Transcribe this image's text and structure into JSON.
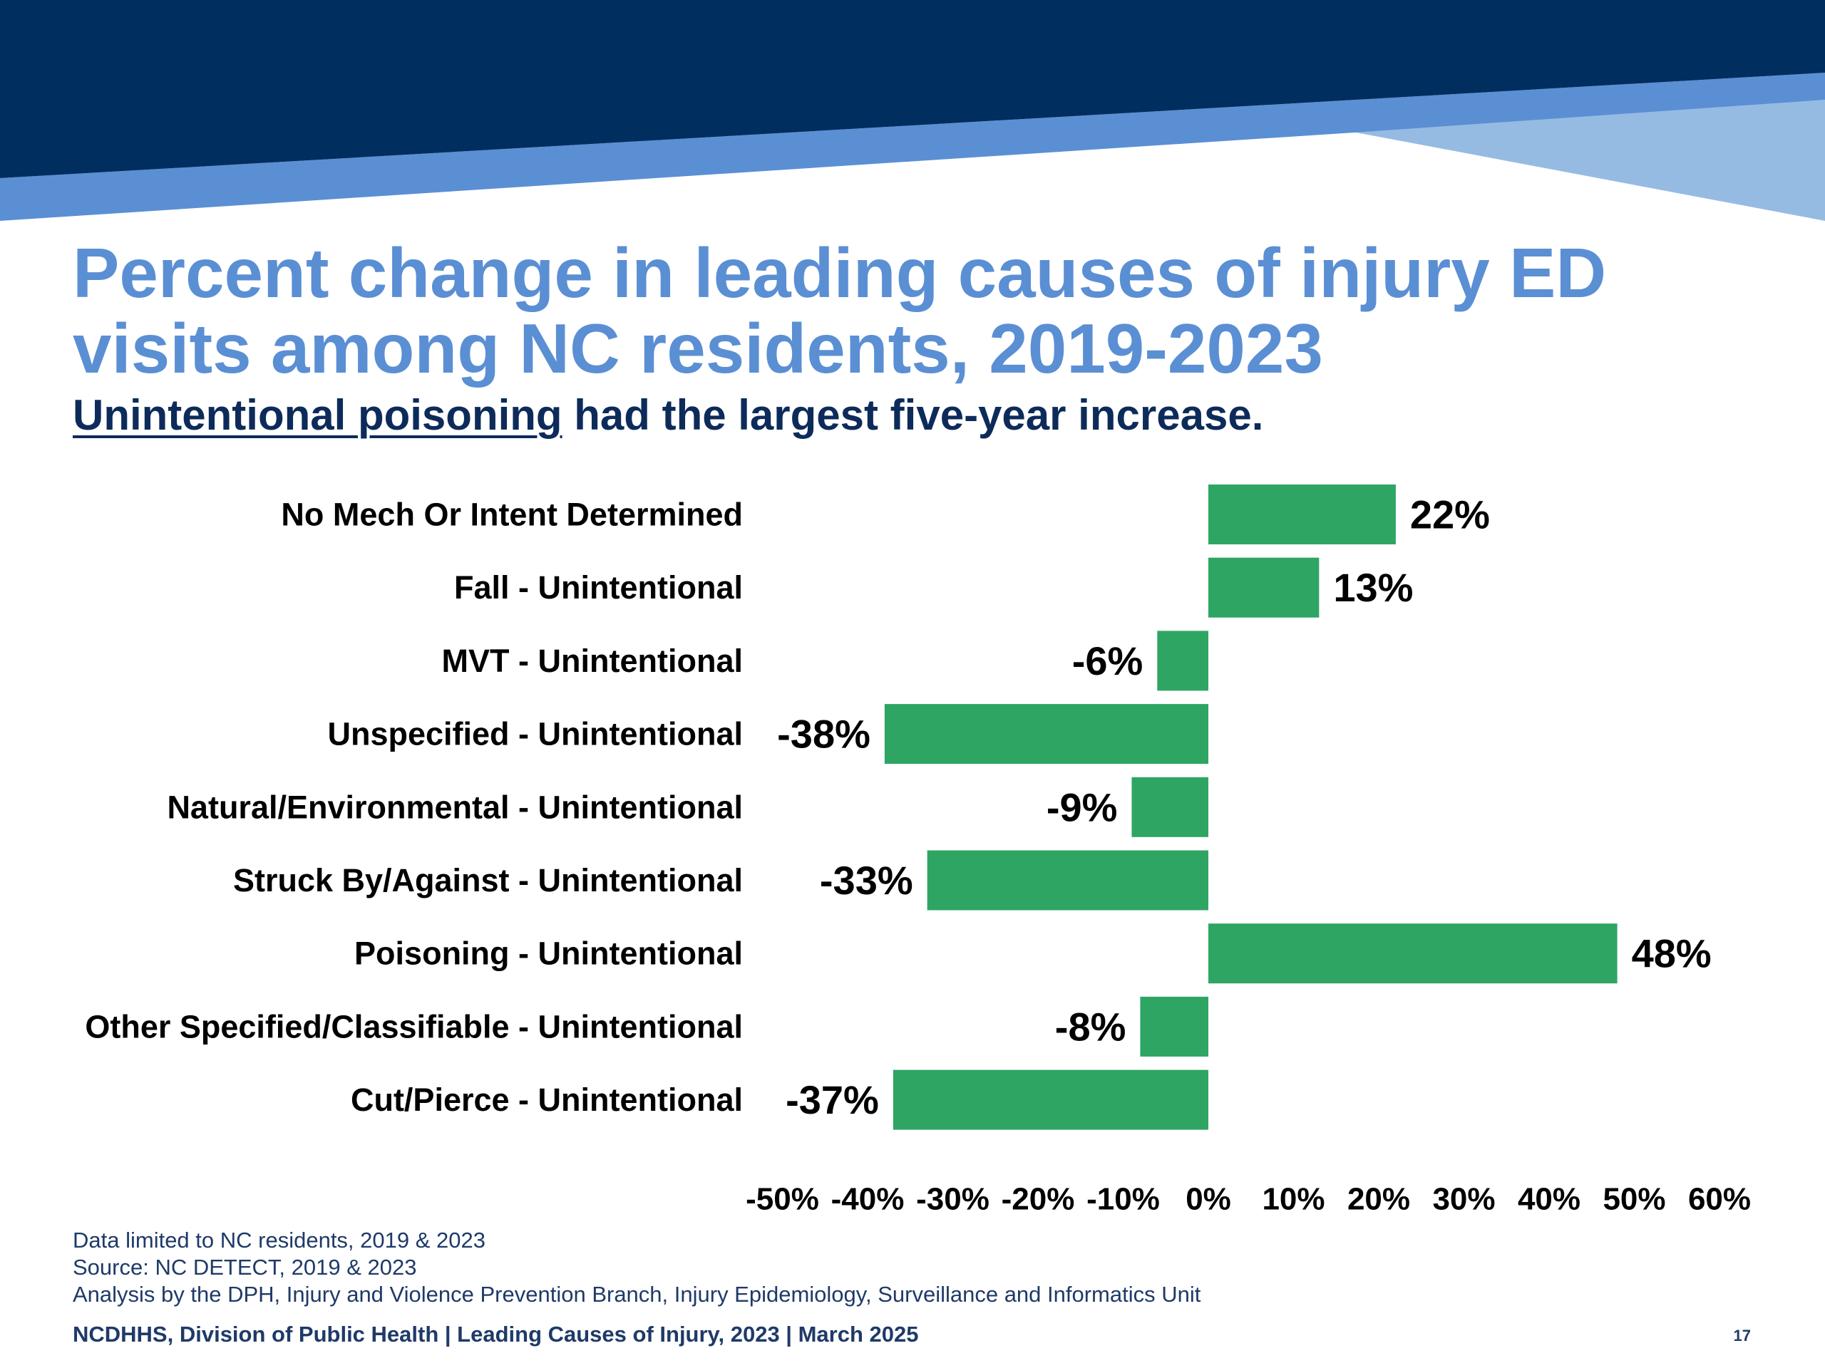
{
  "slide": {
    "title_line1": "Percent change in leading causes of injury ED",
    "title_line2": "visits among NC residents, 2019-2023",
    "subtitle_highlight": "Unintentional poisoning",
    "subtitle_rest": " had the largest five-year increase.",
    "notes": [
      "Data limited to NC residents, 2019 & 2023",
      "Source: NC DETECT, 2019 & 2023",
      "Analysis by the DPH, Injury and Violence Prevention Branch, Injury Epidemiology, Surveillance and Informatics Unit"
    ],
    "footer": "NCDHHS, Division of Public Health | Leading Causes of Injury, 2023 | March 2025",
    "page_number": "17",
    "colors": {
      "banner_dark": "#002e5f",
      "banner_mid": "#5b8fd4",
      "banner_light": "#96bbe3",
      "title": "#5b8fd4",
      "subtitle": "#0d2b5a",
      "bar": "#2ea563"
    }
  },
  "chart_data": {
    "type": "bar",
    "orientation": "horizontal",
    "categories": [
      "No Mech Or Intent Determined",
      "Fall - Unintentional",
      "MVT - Unintentional",
      "Unspecified - Unintentional",
      "Natural/Environmental - Unintentional",
      "Struck By/Against - Unintentional",
      "Poisoning - Unintentional",
      "Other Specified/Classifiable - Unintentional",
      "Cut/Pierce - Unintentional"
    ],
    "values": [
      22,
      13,
      -6,
      -38,
      -9,
      -33,
      48,
      -8,
      -37
    ],
    "data_labels": [
      "22%",
      "13%",
      "-6%",
      "-38%",
      "-9%",
      "-33%",
      "48%",
      "-8%",
      "-37%"
    ],
    "xlim": [
      -50,
      60
    ],
    "xticks": [
      -50,
      -40,
      -30,
      -20,
      -10,
      0,
      10,
      20,
      30,
      40,
      50,
      60
    ],
    "xtick_labels": [
      "-50%",
      "-40%",
      "-30%",
      "-20%",
      "-10%",
      "0%",
      "10%",
      "20%",
      "30%",
      "40%",
      "50%",
      "60%"
    ],
    "grid": false,
    "legend": "none"
  }
}
